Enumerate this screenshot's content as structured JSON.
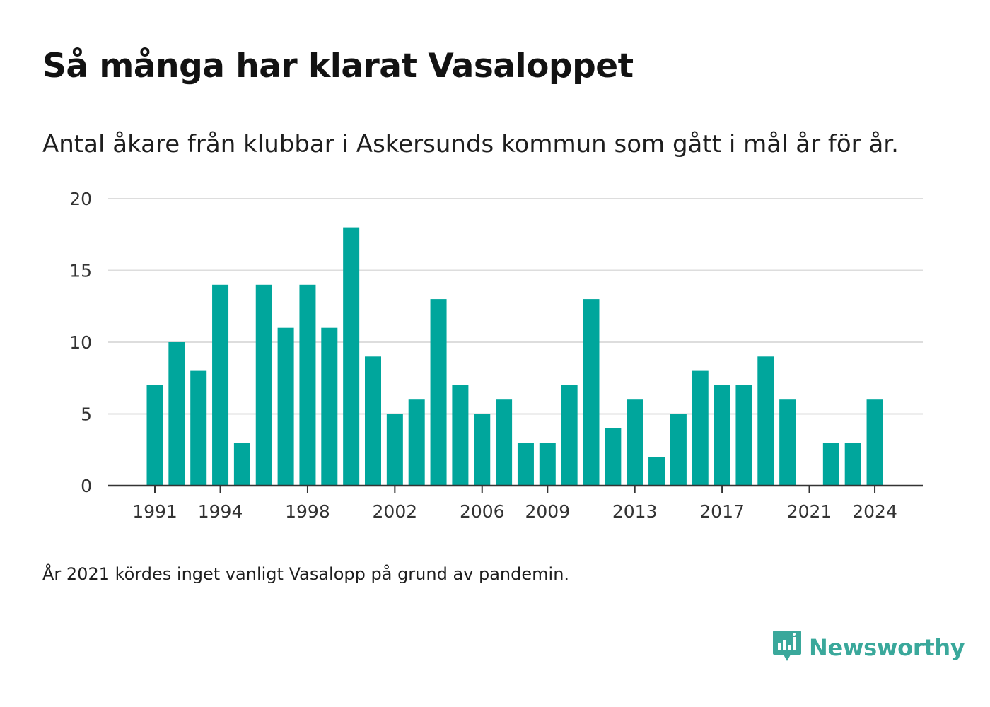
{
  "title": "Så många har klarat Vasaloppet",
  "subtitle": "Antal åkare från klubbar i Askersunds kommun som gått i mål år för år.",
  "note": "År 2021 kördes inget vanligt Vasalopp på grund av pandemin.",
  "brand": {
    "name": "Newsworthy",
    "icon": "newsworthy-logo-icon",
    "color": "#3aa89b"
  },
  "colors": {
    "bar": "#00a69c",
    "grid": "#dddddd",
    "axis": "#333333",
    "tick_text": "#333333"
  },
  "chart_data": {
    "type": "bar",
    "x": [
      1991,
      1992,
      1993,
      1994,
      1995,
      1996,
      1997,
      1998,
      1999,
      2000,
      2001,
      2002,
      2003,
      2004,
      2005,
      2006,
      2007,
      2008,
      2009,
      2010,
      2011,
      2012,
      2013,
      2014,
      2015,
      2016,
      2017,
      2018,
      2019,
      2020,
      2021,
      2022,
      2023,
      2024
    ],
    "values": [
      7,
      10,
      8,
      14,
      3,
      14,
      11,
      14,
      11,
      18,
      9,
      5,
      6,
      13,
      7,
      5,
      6,
      3,
      3,
      7,
      13,
      4,
      6,
      2,
      5,
      8,
      7,
      7,
      9,
      6,
      0,
      3,
      3,
      6
    ],
    "x_ticks": [
      1991,
      1994,
      1998,
      2002,
      2006,
      2009,
      2013,
      2017,
      2021,
      2024
    ],
    "y_ticks": [
      0,
      5,
      10,
      15,
      20
    ],
    "ylim": [
      0,
      20
    ],
    "grid": true,
    "legend": "none",
    "xlabel": "",
    "ylabel": ""
  }
}
